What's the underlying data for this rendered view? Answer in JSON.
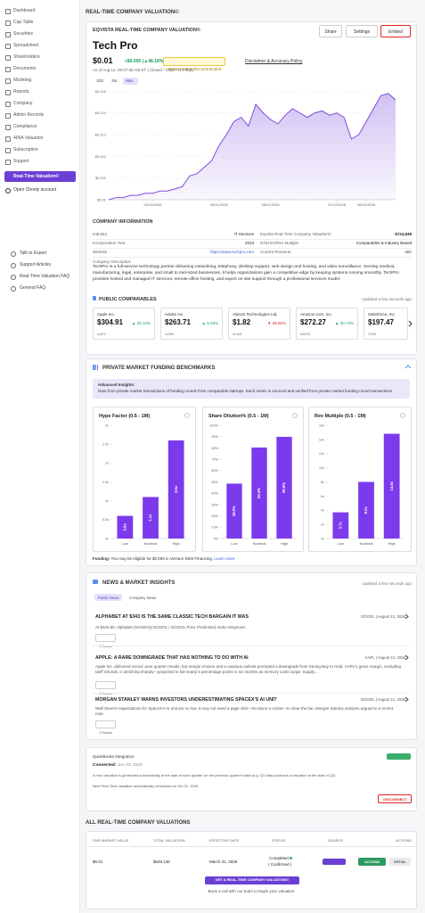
{
  "sidebar": {
    "nav": [
      "Dashboard",
      "Cap Table",
      "Securities",
      "Spreadsheet",
      "Shareholders",
      "Documents",
      "Modeling",
      "Reports",
      "Company",
      "Admin Records",
      "Compliance",
      "409A Valuation",
      "Subscription",
      "Support"
    ],
    "highlighted": "Real-Time Valuation©",
    "extra": "Open Chooly account",
    "help": [
      "Talk to Expert",
      "Support Articles",
      "Real-Time Valuation FAQ",
      "General FAQ"
    ]
  },
  "page_title": "REAL-TIME COMPANY VALUATION©",
  "valuation": {
    "label": "EQVISTA REAL-TIME COMPANY VALUATION©",
    "buttons": [
      "Share",
      "Settings",
      "Embed"
    ],
    "company": "Tech Pro",
    "price": "$0.01",
    "change": "+$0.005 (▲48.18%)",
    "status": "Status Update Recommended",
    "disclaimer": "Disclaimer & Accuracy Policy",
    "as_of": "As of Aug 12, 09:07:36 AM ET | Closed * USD * R-T EQV",
    "ranges": [
      "30D",
      "3M",
      "Max"
    ]
  },
  "company_info": {
    "title": "COMPANY INFORMATION",
    "rows": [
      [
        "Industry",
        "IT Services",
        "Eqvista Real-Time Company Valuation©",
        "$724,848"
      ],
      [
        "Incorporation Year",
        "2023",
        "NTM EV/Rev Multiple",
        "Comparables & Industry Based"
      ],
      [
        "Website",
        "https://www.techpro.com",
        "Current Revenue",
        "N/A"
      ]
    ],
    "description_label": "Company Description",
    "description": "TechPro is a full-service technology partner delivering networking, telephony, desktop support, web design and hosting, and video surveillance. Serving medical, manufacturing, legal, enterprise, and small to mid-sized businesses, it helps organizations gain a competitive edge by keeping systems running smoothly. TechPro provides hosted and managed IT services, remote-office hosting, and expert on-site support through a professional services model."
  },
  "comparables": {
    "title": "PUBLIC COMPARABLES",
    "updated": "Updated a few seconds ago",
    "items": [
      {
        "name": "Apple Inc.",
        "price": "$304.91",
        "change": "▲ 20.14%",
        "color": "#1a9c5b",
        "ticker": "AAPL"
      },
      {
        "name": "Adobe Inc.",
        "price": "$263.71",
        "change": "▲ 8.49%",
        "color": "#1a9c5b",
        "ticker": "ADBE"
      },
      {
        "name": "Alarum Technologies Ltd.",
        "price": "$1.82",
        "change": "▼ 68.56%",
        "color": "#d93025",
        "ticker": "ALAR"
      },
      {
        "name": "Amazon.com, Inc.",
        "price": "$272.27",
        "change": "▲ 30.73%",
        "color": "#1a9c5b",
        "ticker": "AMZN"
      },
      {
        "name": "Salesforce, Inc.",
        "price": "$197.47",
        "ticker": "CRM"
      }
    ]
  },
  "benchmarks": {
    "title": "PRIVATE MARKET FUNDING BENCHMARKS",
    "insight_label": "Advanced Insights:",
    "insight": "Data from private market transactions of funding rounds from comparable startups. Each metric is sourced and verified from private market funding round transactions.",
    "funding_label": "Funding:",
    "funding": "You may be eligible for $0.005 in Venture Debt Financing.",
    "learn_more": "Learn more"
  },
  "news": {
    "title": "NEWS & MARKET INSIGHTS",
    "updated": "Updated a few seconds ago",
    "tabs": [
      "Public News",
      "Company News"
    ],
    "items": [
      {
        "headline": "ALPHABET AT $343 IS THE SAME CLASSIC TECH BARGAIN IT WAS",
        "meta": "GOOGL | August 12, 2026",
        "summary": "At $343.80, Alphabet (NASDAQ:GOOGL | GOOGL Price Prediction) looks mispriced.",
        "sources": "1 Source"
      },
      {
        "headline": "APPLE: A RARE DOWNGRADE THAT HAS NOTHING TO DO WITH AI",
        "meta": "AAPL | August 12, 2026",
        "summary": "Apple Inc. delivered record June quarter results, but margin erosion and a cautious outlook prompted a downgrade from Strong Buy to Hold. AAPL's gross margin, excluding tariff refunds, is declining sharply—projected to fall nearly 5 percentage points in six months as memory costs surge. Supply...",
        "sources": "1 Source"
      },
      {
        "headline": "MORGAN STANLEY WARNS INVESTORS UNDERESTIMATING SPACEX'S AI UNIT",
        "meta": "GOOGL | August 12, 2026",
        "summary": "Wall Street's expectations for SpaceX's AI unit are so low, it may not need a page click—let alone a rocket—to clear the bar, Morgan Stanley analysts argued in a recent note.",
        "sources": "1 Source"
      }
    ]
  },
  "quickbooks": {
    "title": "QuickBooks Integration",
    "badge": "Connected",
    "connected_label": "Connected:",
    "connected_date": "Jun 23, 2026",
    "note": "A new valuation is generated automatically at the start of each quarter for the previous quarter's data (e.g. Q1 data produces a valuation at the start of Q2).",
    "next": "Next Real-Time valuation automatically scheduled on Oct 01, 2026",
    "button": "DISCONNECT"
  },
  "all_valuations": {
    "title": "ALL REAL-TIME COMPANY VALUATIONS",
    "columns": [
      "FAIR MARKET VALUE",
      "TOTAL VALUATION",
      "EFFECTIVE DATE",
      "STATUS",
      "SOURCE",
      "ACTIONS"
    ],
    "rows": [
      {
        "fmv": "$0.01",
        "total": "$648,146",
        "date": "March 31, 2026",
        "status": "Completed",
        "status_note": "( Confirmed )",
        "source": "QuickBooks",
        "actions": "ACTIONS",
        "detail": "DETAIL"
      }
    ],
    "cta": "GET A REAL-TIME COMPANY VALUATION©",
    "cta_note": "Book a call with our team to begin your valuation"
  },
  "chart_data": [
    {
      "type": "line",
      "categories": [
        null,
        null,
        null,
        null,
        null,
        null,
        "04/13/2026",
        null,
        null,
        null,
        null,
        null,
        null,
        null,
        null,
        "05/11/2026",
        null,
        null,
        null,
        null,
        null,
        null,
        "06/21/2026",
        null,
        null,
        null,
        null,
        null,
        null,
        null,
        null,
        "07/12/2026",
        null,
        null,
        null,
        "08/01/2026",
        null,
        null,
        null,
        null
      ],
      "values": [
        0.01,
        0.0101,
        0.0101,
        0.0102,
        0.0102,
        0.0103,
        0.0103,
        0.0104,
        0.0104,
        0.0105,
        0.0106,
        0.0111,
        0.0112,
        0.0115,
        0.0118,
        0.0125,
        0.013,
        0.0136,
        0.0138,
        0.0134,
        0.0144,
        0.014,
        0.0137,
        0.0135,
        0.0139,
        0.0142,
        0.014,
        0.0138,
        0.014,
        0.0141,
        0.0139,
        0.014,
        0.0138,
        0.0128,
        0.013,
        0.0136,
        0.0142,
        0.0148,
        0.0149,
        0.0146
      ],
      "color": "#7c4ddc",
      "ylim": [
        0.01,
        0.0151
      ],
      "yticks": [
        {
          "value": 0.01,
          "label": "$0.01"
        },
        {
          "value": 0.011,
          "label": "$0.011"
        },
        {
          "value": 0.012,
          "label": "$0.012"
        },
        {
          "value": 0.013,
          "label": "$0.013"
        },
        {
          "value": 0.014,
          "label": "$0.014"
        },
        {
          "value": 0.015,
          "label": "$0.015"
        }
      ],
      "grid": true
    },
    {
      "type": "bar",
      "title": "Hype Factor (0.5 - 1M)",
      "categories": [
        "Low",
        "Nominal",
        "High"
      ],
      "values": [
        0.6,
        1.1,
        2.6
      ],
      "value_labels": [
        "0.6x",
        "1.1x",
        "2.6x"
      ],
      "color": "#7c3aed",
      "ylim": [
        0,
        3
      ],
      "yticks": [
        {
          "value": 0,
          "label": "0x"
        },
        {
          "value": 0.5,
          "label": "0.5x"
        },
        {
          "value": 1,
          "label": "1x"
        },
        {
          "value": 1.5,
          "label": "1.5x"
        },
        {
          "value": 2,
          "label": "2x"
        },
        {
          "value": 2.5,
          "label": "2.5x"
        },
        {
          "value": 3,
          "label": "3x"
        }
      ]
    },
    {
      "type": "bar",
      "title": "Share Dilution% (0.5 - 1M)",
      "categories": [
        "Low",
        "Nominal",
        "High"
      ],
      "values": [
        48.5,
        80.4,
        89.8
      ],
      "value_labels": [
        "48.5%",
        "80.4%",
        "89.8%"
      ],
      "color": "#7c3aed",
      "ylim": [
        0,
        100
      ],
      "yticks": [
        {
          "value": 0,
          "label": "0%"
        },
        {
          "value": 10,
          "label": "10%"
        },
        {
          "value": 20,
          "label": "20%"
        },
        {
          "value": 30,
          "label": "30%"
        },
        {
          "value": 40,
          "label": "40%"
        },
        {
          "value": 50,
          "label": "50%"
        },
        {
          "value": 60,
          "label": "60%"
        },
        {
          "value": 70,
          "label": "70%"
        },
        {
          "value": 80,
          "label": "80%"
        },
        {
          "value": 90,
          "label": "90%"
        },
        {
          "value": 100,
          "label": "100%"
        }
      ]
    },
    {
      "type": "bar",
      "title": "Rev Multiple (0.5 - 1M)",
      "categories": [
        "Low",
        "Nominal",
        "High"
      ],
      "values": [
        3.7,
        8.0,
        14.8
      ],
      "value_labels": [
        "3.7x",
        "8.0x",
        "14.8x"
      ],
      "color": "#7c3aed",
      "ylim": [
        0,
        16
      ],
      "yticks": [
        {
          "value": 0,
          "label": "0x"
        },
        {
          "value": 2,
          "label": "2x"
        },
        {
          "value": 4,
          "label": "4x"
        },
        {
          "value": 6,
          "label": "6x"
        },
        {
          "value": 8,
          "label": "8x"
        },
        {
          "value": 10,
          "label": "10x"
        },
        {
          "value": 12,
          "label": "12x"
        },
        {
          "value": 14,
          "label": "14x"
        },
        {
          "value": 16,
          "label": "16x"
        }
      ]
    }
  ]
}
